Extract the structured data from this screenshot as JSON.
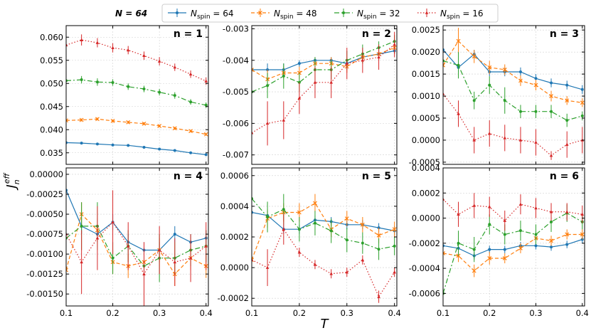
{
  "legend": {
    "prefix": "N = 64",
    "sub": "spin",
    "entries": [
      {
        "value": "64",
        "color": "#1f77b4"
      },
      {
        "value": "48",
        "color": "#ff7f0e"
      },
      {
        "value": "32",
        "color": "#2ca02c"
      },
      {
        "value": "16",
        "color": "#d62728"
      }
    ]
  },
  "axis_labels": {
    "x": "T",
    "y_main": "J",
    "y_sub": "n",
    "y_sup": "eff"
  },
  "chart_data": {
    "type": "line",
    "x": [
      0.1,
      0.133,
      0.167,
      0.2,
      0.233,
      0.267,
      0.3,
      0.333,
      0.367,
      0.4
    ],
    "series_names": [
      "N_spin = 64",
      "N_spin = 48",
      "N_spin = 32",
      "N_spin = 16"
    ],
    "xticks": [
      0.1,
      0.2,
      0.3,
      0.4
    ],
    "xtick_labels": [
      "0.1",
      "0.2",
      "0.3",
      "0.4"
    ],
    "panels": [
      {
        "label": "n = 1",
        "ylim": [
          0.0325,
          0.0625
        ],
        "yticks": [
          0.035,
          0.04,
          0.045,
          0.05,
          0.055,
          0.06
        ],
        "ytick_labels": [
          "0.035",
          "0.040",
          "0.045",
          "0.050",
          "0.055",
          "0.060"
        ],
        "series": [
          {
            "y": [
              0.0372,
              0.0371,
              0.0369,
              0.0367,
              0.0366,
              0.0362,
              0.0358,
              0.0355,
              0.035,
              0.0346
            ],
            "err": [
              0.0002,
              0.0002,
              0.0002,
              0.0002,
              0.0002,
              0.0002,
              0.0002,
              0.0002,
              0.0002,
              0.0002
            ]
          },
          {
            "y": [
              0.042,
              0.0421,
              0.0423,
              0.0419,
              0.0416,
              0.0413,
              0.0408,
              0.0403,
              0.0397,
              0.039
            ],
            "err": [
              0.0003,
              0.0003,
              0.0003,
              0.0003,
              0.0003,
              0.0003,
              0.0003,
              0.0003,
              0.0003,
              0.0003
            ]
          },
          {
            "y": [
              0.0506,
              0.0508,
              0.0503,
              0.0502,
              0.0493,
              0.0488,
              0.0481,
              0.0474,
              0.046,
              0.0453
            ],
            "err": [
              0.0008,
              0.0008,
              0.0008,
              0.0007,
              0.0007,
              0.0007,
              0.0007,
              0.0007,
              0.0006,
              0.0006
            ]
          },
          {
            "y": [
              0.0583,
              0.0594,
              0.0588,
              0.0577,
              0.0572,
              0.056,
              0.0548,
              0.0535,
              0.052,
              0.0505
            ],
            "err": [
              0.001,
              0.0012,
              0.001,
              0.001,
              0.0009,
              0.0009,
              0.0009,
              0.0008,
              0.0008,
              0.0008
            ]
          }
        ]
      },
      {
        "label": "n = 2",
        "ylim": [
          -0.0073,
          -0.0029
        ],
        "yticks": [
          -0.007,
          -0.006,
          -0.005,
          -0.004,
          -0.003
        ],
        "ytick_labels": [
          "-0.007",
          "-0.006",
          "-0.005",
          "-0.004",
          "-0.003"
        ],
        "series": [
          {
            "y": [
              -0.0043,
              -0.0043,
              -0.0043,
              -0.0041,
              -0.004,
              -0.004,
              -0.0041,
              -0.0039,
              -0.0038,
              -0.0037
            ],
            "err": [
              0.0002,
              0.0002,
              0.0002,
              0.0001,
              0.0001,
              0.0001,
              0.0001,
              0.0001,
              0.0001,
              0.0001
            ]
          },
          {
            "y": [
              -0.0043,
              -0.0046,
              -0.0044,
              -0.0044,
              -0.0041,
              -0.0041,
              -0.0042,
              -0.0039,
              -0.0038,
              -0.0036
            ],
            "err": [
              0.0003,
              0.0003,
              0.0002,
              0.0002,
              0.0002,
              0.0002,
              0.0002,
              0.0002,
              0.0002,
              0.0002
            ]
          },
          {
            "y": [
              -0.005,
              -0.0048,
              -0.0045,
              -0.0047,
              -0.0043,
              -0.0043,
              -0.004,
              -0.0038,
              -0.0036,
              -0.0034
            ],
            "err": [
              0.0005,
              0.0004,
              0.0004,
              0.0003,
              0.0004,
              0.0003,
              0.0003,
              0.0003,
              0.0002,
              0.0002
            ]
          },
          {
            "y": [
              -0.0063,
              -0.006,
              -0.0059,
              -0.0052,
              -0.0047,
              -0.0047,
              -0.0041,
              -0.004,
              -0.0039,
              -0.0035
            ],
            "err": [
              0.0008,
              0.0007,
              0.0006,
              0.0005,
              0.0005,
              0.0005,
              0.0005,
              0.0004,
              0.0004,
              0.0004
            ]
          }
        ]
      },
      {
        "label": "n = 3",
        "ylim": [
          -0.00055,
          0.0026
        ],
        "yticks": [
          -0.0005,
          0.0,
          0.0005,
          0.001,
          0.0015,
          0.002,
          0.0025
        ],
        "ytick_labels": [
          "-0.0005",
          "0.0000",
          "0.0005",
          "0.0010",
          "0.0015",
          "0.0020",
          "0.0025"
        ],
        "series": [
          {
            "y": [
              0.00205,
              0.00165,
              0.00195,
              0.00155,
              0.00155,
              0.00155,
              0.0014,
              0.0013,
              0.00125,
              0.00115
            ],
            "err": [
              0.0001,
              0.0001,
              0.0001,
              0.0001,
              0.0001,
              0.0001,
              0.0001,
              0.0001,
              0.0001,
              0.0001
            ]
          },
          {
            "y": [
              0.0017,
              0.00225,
              0.0019,
              0.00165,
              0.0016,
              0.00135,
              0.00125,
              0.001,
              0.0009,
              0.00085
            ],
            "err": [
              0.00015,
              0.0003,
              0.00015,
              0.00015,
              0.00012,
              0.00012,
              0.00012,
              0.00012,
              0.0001,
              0.0001
            ]
          },
          {
            "y": [
              0.0018,
              0.0017,
              0.0009,
              0.00125,
              0.0009,
              0.00065,
              0.00065,
              0.00065,
              0.00045,
              0.00055
            ],
            "err": [
              0.0002,
              0.0003,
              0.0002,
              0.0002,
              0.0003,
              0.00015,
              0.00015,
              0.00015,
              0.00015,
              0.0001
            ]
          },
          {
            "y": [
              0.00105,
              0.0006,
              0.0,
              0.00015,
              5e-05,
              0.0,
              -5e-05,
              -0.00035,
              -0.0001,
              0.0
            ],
            "err": [
              0.0003,
              0.0003,
              0.0003,
              0.0003,
              0.0003,
              0.0003,
              0.0003,
              0.0001,
              0.0003,
              0.0003
            ]
          }
        ]
      },
      {
        "label": "n = 4",
        "ylim": [
          -0.00165,
          8e-05
        ],
        "yticks": [
          -0.0015,
          -0.00125,
          -0.001,
          -0.00075,
          -0.0005,
          -0.00025,
          0.0
        ],
        "ytick_labels": [
          "-0.00150",
          "-0.00125",
          "-0.00100",
          "-0.00075",
          "-0.00050",
          "-0.00025",
          "0.00000"
        ],
        "series": [
          {
            "y": [
              -0.0002,
              -0.00065,
              -0.00075,
              -0.0006,
              -0.00085,
              -0.00095,
              -0.00095,
              -0.00075,
              -0.00085,
              -0.0008
            ],
            "err": [
              0.00015,
              0.0001,
              0.0001,
              0.0001,
              0.0001,
              0.0001,
              0.0001,
              0.0001,
              0.0001,
              0.0001
            ]
          },
          {
            "y": [
              -0.0012,
              -0.0005,
              -0.0007,
              -0.0011,
              -0.00115,
              -0.0011,
              -0.00095,
              -0.00125,
              -0.00105,
              -0.00115
            ],
            "err": [
              0.0002,
              0.00015,
              0.00015,
              0.00015,
              0.00015,
              0.00015,
              0.00015,
              0.00015,
              0.00015,
              0.00015
            ]
          },
          {
            "y": [
              -0.0008,
              -0.00065,
              -0.00065,
              -0.00105,
              -0.0009,
              -0.00115,
              -0.00105,
              -0.00105,
              -0.00095,
              -0.0009
            ],
            "err": [
              0.0002,
              0.0003,
              0.0003,
              0.0002,
              0.0002,
              0.0002,
              0.0003,
              0.0002,
              0.0002,
              0.0002
            ]
          },
          {
            "y": [
              -0.00075,
              -0.0011,
              -0.0008,
              -0.0006,
              -0.0009,
              -0.00125,
              -0.00095,
              -0.0011,
              -0.00105,
              -0.0009
            ],
            "err": [
              0.0003,
              0.0004,
              0.0004,
              0.0004,
              0.0003,
              0.0004,
              0.0003,
              0.0003,
              0.0003,
              0.0003
            ]
          }
        ]
      },
      {
        "label": "n = 5",
        "ylim": [
          -0.00025,
          0.00065
        ],
        "yticks": [
          -0.0002,
          0.0,
          0.0002,
          0.0004,
          0.0006
        ],
        "ytick_labels": [
          "-0.0002",
          "0.0000",
          "0.0002",
          "0.0004",
          "0.0006"
        ],
        "series": [
          {
            "y": [
              0.00036,
              0.00034,
              0.00025,
              0.00025,
              0.00031,
              0.0003,
              0.00028,
              0.00028,
              0.00026,
              0.00024
            ],
            "err": [
              3e-05,
              3e-05,
              3e-05,
              3e-05,
              3e-05,
              3e-05,
              3e-05,
              3e-05,
              3e-05,
              3e-05
            ]
          },
          {
            "y": [
              5e-05,
              0.00032,
              0.00036,
              0.00036,
              0.00042,
              0.00025,
              0.00032,
              0.00028,
              0.00021,
              0.00025
            ],
            "err": [
              5e-05,
              6e-05,
              6e-05,
              6e-05,
              6e-05,
              5e-05,
              5e-05,
              5e-05,
              5e-05,
              5e-05
            ]
          },
          {
            "y": [
              0.00045,
              0.00033,
              0.00038,
              0.00025,
              0.00029,
              0.00024,
              0.00018,
              0.00016,
              0.00012,
              0.00014
            ],
            "err": [
              0.0001,
              0.0001,
              0.0001,
              8e-05,
              8e-05,
              8e-05,
              8e-05,
              7e-05,
              7e-05,
              6e-05
            ]
          },
          {
            "y": [
              5e-05,
              0.0,
              0.00025,
              0.0001,
              2e-05,
              -4e-05,
              -3e-05,
              5e-05,
              -0.00019,
              -3e-05
            ],
            "err": [
              0.00012,
              0.00012,
              0.0001,
              3e-05,
              3e-05,
              3e-05,
              3e-05,
              3e-05,
              4e-05,
              3e-05
            ]
          }
        ]
      },
      {
        "label": "n = 6",
        "ylim": [
          -0.0007,
          0.0004
        ],
        "yticks": [
          -0.0006,
          -0.0004,
          -0.0002,
          0.0,
          0.0002,
          0.0004
        ],
        "ytick_labels": [
          "-0.0006",
          "-0.0004",
          "-0.0002",
          "0.0000",
          "0.0002",
          "0.0004"
        ],
        "series": [
          {
            "y": [
              -0.00022,
              -0.00024,
              -0.0003,
              -0.00025,
              -0.00025,
              -0.00022,
              -0.00022,
              -0.00023,
              -0.00021,
              -0.00017
            ],
            "err": [
              3e-05,
              3e-05,
              3e-05,
              3e-05,
              3e-05,
              3e-05,
              3e-05,
              3e-05,
              3e-05,
              3e-05
            ]
          },
          {
            "y": [
              -0.00028,
              -0.0003,
              -0.00042,
              -0.00032,
              -0.00032,
              -0.00024,
              -0.00016,
              -0.00018,
              -0.00013,
              -0.00013
            ],
            "err": [
              5e-05,
              5e-05,
              5e-05,
              5e-05,
              4e-05,
              4e-05,
              4e-05,
              4e-05,
              4e-05,
              4e-05
            ]
          },
          {
            "y": [
              -0.0006,
              -0.0002,
              -0.00025,
              -5e-05,
              -0.00013,
              -0.0001,
              -0.00013,
              -3e-05,
              4e-05,
              -3e-05
            ],
            "err": [
              0.0001,
              0.0001,
              0.0001,
              8e-05,
              8e-05,
              8e-05,
              8e-05,
              8e-05,
              7e-05,
              6e-05
            ]
          },
          {
            "y": [
              0.00015,
              3e-05,
              0.0001,
              9e-05,
              -2e-05,
              0.00011,
              8e-05,
              5e-05,
              5e-05,
              3e-05
            ],
            "err": [
              0.00015,
              0.0001,
              0.0001,
              8e-05,
              8e-05,
              8e-05,
              8e-05,
              7e-05,
              7e-05,
              7e-05
            ]
          }
        ]
      }
    ]
  }
}
